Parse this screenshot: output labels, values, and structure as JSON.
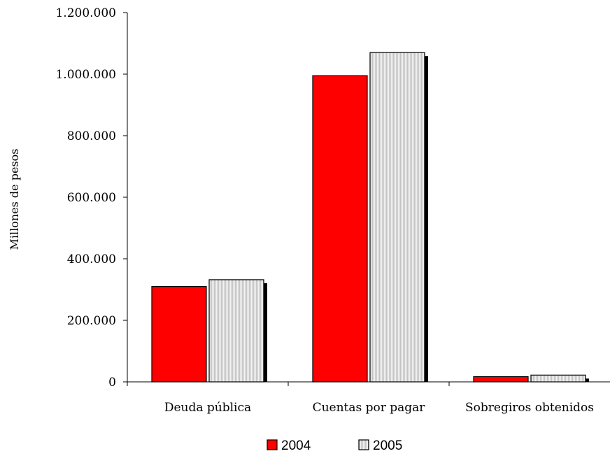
{
  "chart_data": {
    "type": "bar",
    "title": "",
    "xlabel": "",
    "ylabel": "Millones de pesos",
    "ylim": [
      0,
      1200000
    ],
    "yticks": [
      0,
      200000,
      400000,
      600000,
      800000,
      1000000,
      1200000
    ],
    "ytick_labels": [
      "0",
      "200.000",
      "400.000",
      "600.000",
      "800.000",
      "1.000.000",
      "1.200.000"
    ],
    "grid": false,
    "legend_position": "bottom-center",
    "categories": [
      "Deuda pública",
      "Cuentas por pagar",
      "Sobregiros obtenidos"
    ],
    "series": [
      {
        "name": "2004",
        "color": "#ff0000",
        "values": [
          310000,
          995000,
          17000
        ]
      },
      {
        "name": "2005",
        "color": "#e6e6e6",
        "values": [
          332000,
          1070000,
          22000
        ]
      }
    ]
  }
}
